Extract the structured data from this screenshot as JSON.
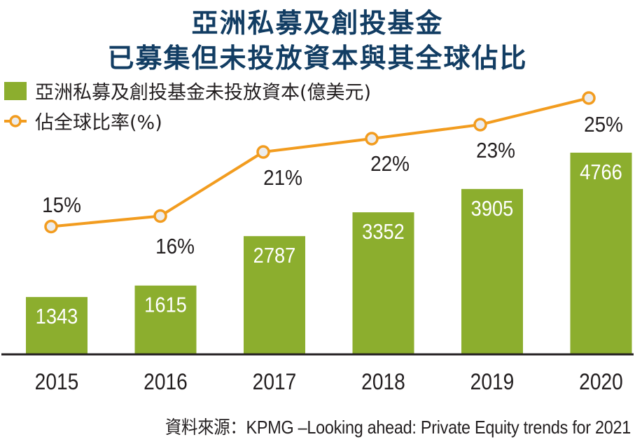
{
  "title": {
    "line1": "亞洲私募及創投基金",
    "line2": "已募集但未投放資本與其全球佔比"
  },
  "legend": {
    "bar_label": "亞洲私募及創投基金未投放資本(億美元)",
    "line_label": "佔全球比率(%)"
  },
  "source": "資料來源：KPMG –Looking  ahead: Private Equity trends for 2021",
  "colors": {
    "bar": "#8cae2e",
    "line": "#f29c1f",
    "marker_fill": "#ececec",
    "title": "#123d63",
    "text": "#231f20",
    "axis": "#231f20"
  },
  "chart_data": {
    "type": "bar",
    "categories": [
      "2015",
      "2016",
      "2017",
      "2018",
      "2019",
      "2020"
    ],
    "series": [
      {
        "name": "亞洲私募及創投基金未投放資本(億美元)",
        "type": "bar",
        "values": [
          1343,
          1615,
          2787,
          3352,
          3905,
          4766
        ],
        "labels": [
          "1343",
          "1615",
          "2787",
          "3352",
          "3905",
          "4766"
        ]
      },
      {
        "name": "佔全球比率(%)",
        "type": "line",
        "values": [
          15,
          16,
          21,
          22,
          23,
          25
        ],
        "labels": [
          "15%",
          "16%",
          "21%",
          "22%",
          "23%",
          "25%"
        ]
      }
    ],
    "title": "亞洲私募及創投基金已募集但未投放資本與其全球佔比",
    "xlabel": "",
    "ylabel": "",
    "grid": false,
    "legend_position": "top-left"
  }
}
